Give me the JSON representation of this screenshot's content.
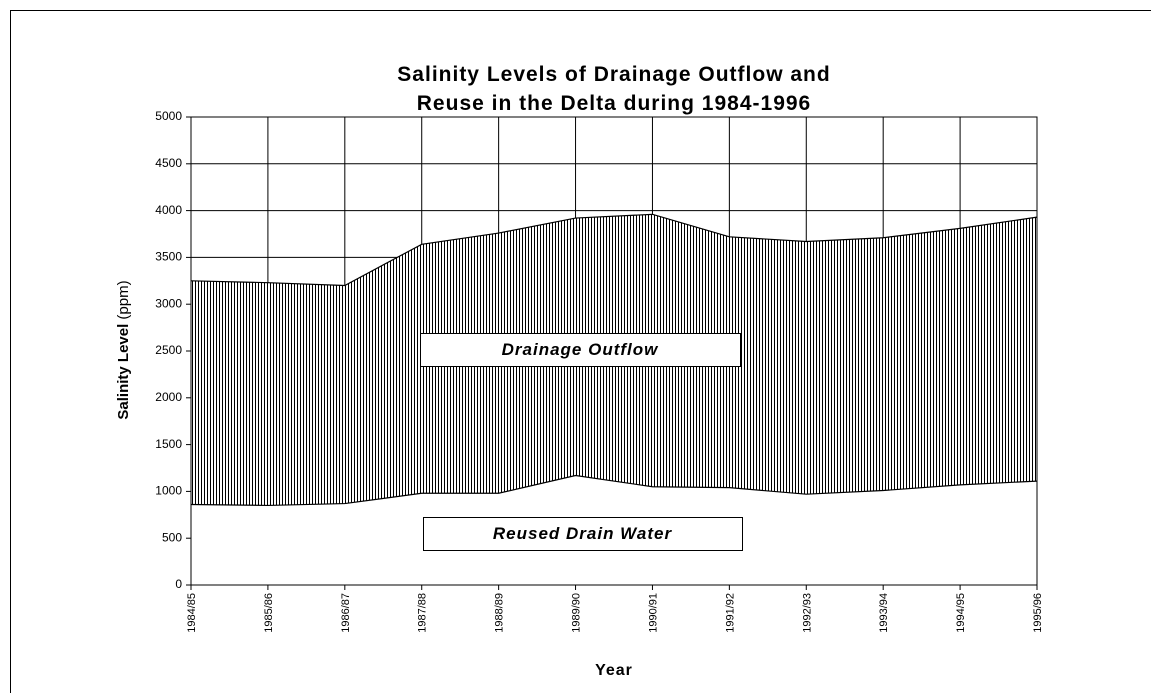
{
  "chart_data": {
    "type": "area",
    "title": "Salinity Levels of Drainage Outflow and Reuse in the Delta during 1984-1996",
    "xlabel": "Year",
    "ylabel": "Salinity Level",
    "ylabel_unit": "(ppm)",
    "categories": [
      "1984/85",
      "1985/86",
      "1986/87",
      "1987/88",
      "1988/89",
      "1989/90",
      "1990/91",
      "1991/92",
      "1992/93",
      "1993/94",
      "1994/95",
      "1995/96"
    ],
    "series": [
      {
        "name": "Drainage Outflow",
        "color": "#000000",
        "values": [
          3250,
          3230,
          3200,
          3640,
          3760,
          3920,
          3960,
          3720,
          3670,
          3710,
          3810,
          3930
        ]
      },
      {
        "name": "Reused Drain Water",
        "color": "#ffffff",
        "values": [
          860,
          850,
          870,
          980,
          980,
          1170,
          1050,
          1040,
          970,
          1010,
          1070,
          1110
        ]
      }
    ],
    "ylim": [
      0,
      5000
    ],
    "yticks": [
      0,
      500,
      1000,
      1500,
      2000,
      2500,
      3000,
      3500,
      4000,
      4500,
      5000
    ],
    "grid": true
  }
}
